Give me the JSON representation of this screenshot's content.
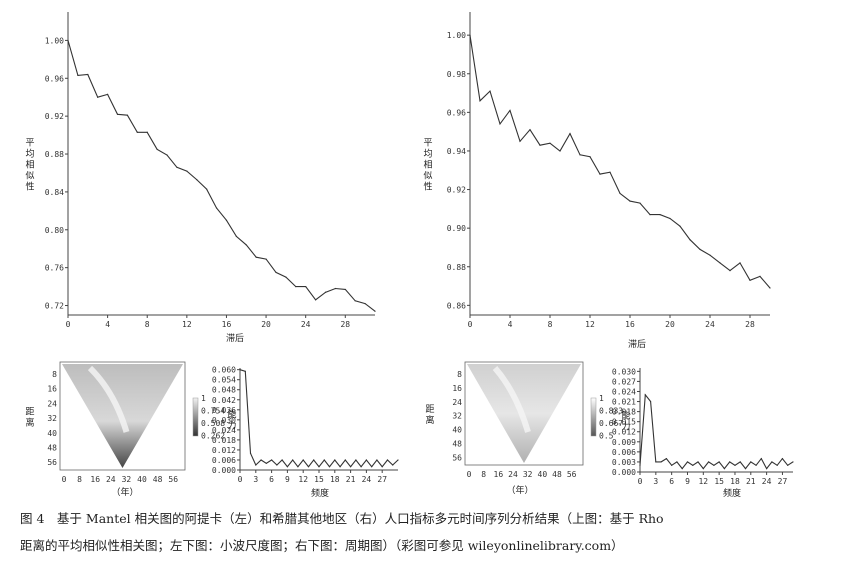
{
  "chart_data": [
    {
      "type": "line",
      "ylabel": "平均相似性",
      "xlabel": "滞后",
      "xticks": [
        0,
        4,
        8,
        12,
        16,
        20,
        24,
        28
      ],
      "yticks": [
        1.0,
        0.96,
        0.92,
        0.88,
        0.84,
        0.8,
        0.76,
        0.72
      ],
      "ytick_labels": [
        "1.00",
        "0.96",
        "0.92",
        "0.88",
        "0.84",
        "0.80",
        "0.76",
        "0.72"
      ],
      "xlim": [
        0,
        31
      ],
      "ylim": [
        0.71,
        1.03
      ],
      "x": [
        0,
        1,
        2,
        3,
        4,
        5,
        6,
        7,
        8,
        9,
        10,
        11,
        12,
        13,
        14,
        15,
        16,
        17,
        18,
        19,
        20,
        21,
        22,
        23,
        24,
        25,
        26,
        27,
        28,
        29,
        30,
        31
      ],
      "y": [
        1.0,
        0.963,
        0.964,
        0.94,
        0.943,
        0.922,
        0.921,
        0.903,
        0.903,
        0.885,
        0.879,
        0.866,
        0.862,
        0.853,
        0.843,
        0.823,
        0.81,
        0.793,
        0.784,
        0.771,
        0.769,
        0.755,
        0.75,
        0.74,
        0.74,
        0.726,
        0.734,
        0.738,
        0.737,
        0.725,
        0.722,
        0.714
      ]
    },
    {
      "type": "line",
      "ylabel": "平均相似性",
      "xlabel": "滞后",
      "xticks": [
        0,
        4,
        8,
        12,
        16,
        20,
        24,
        28
      ],
      "yticks": [
        1.0,
        0.98,
        0.96,
        0.94,
        0.92,
        0.9,
        0.88,
        0.86
      ],
      "ytick_labels": [
        "1.00",
        "0.98",
        "0.96",
        "0.94",
        "0.92",
        "0.90",
        "0.88",
        "0.86"
      ],
      "xlim": [
        0,
        30
      ],
      "ylim": [
        0.855,
        1.012
      ],
      "x": [
        0,
        1,
        2,
        3,
        4,
        5,
        6,
        7,
        8,
        9,
        10,
        11,
        12,
        13,
        14,
        15,
        16,
        17,
        18,
        19,
        20,
        21,
        22,
        23,
        24,
        25,
        26,
        27,
        28,
        29,
        30
      ],
      "y": [
        1.0,
        0.966,
        0.971,
        0.954,
        0.961,
        0.945,
        0.951,
        0.943,
        0.944,
        0.94,
        0.949,
        0.938,
        0.937,
        0.928,
        0.929,
        0.918,
        0.914,
        0.913,
        0.907,
        0.907,
        0.905,
        0.901,
        0.894,
        0.889,
        0.886,
        0.882,
        0.878,
        0.882,
        0.873,
        0.875,
        0.869
      ]
    },
    {
      "type": "heatmap",
      "ylabel": "距离",
      "xlabel": "（年）",
      "xticks": [
        0,
        8,
        16,
        24,
        32,
        40,
        48,
        56
      ],
      "yticks": [
        8,
        16,
        24,
        32,
        40,
        48,
        56
      ],
      "legend": [
        "1",
        "0.754",
        "0.508",
        "0.262"
      ]
    },
    {
      "type": "line",
      "ylabel": "能力",
      "xlabel": "频度",
      "xticks": [
        0,
        3,
        6,
        9,
        12,
        15,
        18,
        21,
        24,
        27
      ],
      "yticks": [
        0.0,
        0.006,
        0.012,
        0.018,
        0.024,
        0.03,
        0.036,
        0.042,
        0.048,
        0.054,
        0.06
      ],
      "ytick_labels": [
        "0.000",
        "0.006",
        "0.012",
        "0.018",
        "0.024",
        "0.030",
        "0.036",
        "0.042",
        "0.048",
        "0.054",
        "0.060"
      ],
      "xlim": [
        0,
        30
      ],
      "ylim": [
        0,
        0.061
      ],
      "x": [
        0,
        1,
        2,
        3,
        4,
        5,
        6,
        7,
        8,
        9,
        10,
        11,
        12,
        13,
        14,
        15,
        16,
        17,
        18,
        19,
        20,
        21,
        22,
        23,
        24,
        25,
        26,
        27,
        28,
        29,
        30
      ],
      "y": [
        0.06,
        0.059,
        0.01,
        0.003,
        0.006,
        0.004,
        0.006,
        0.003,
        0.006,
        0.002,
        0.006,
        0.002,
        0.006,
        0.002,
        0.006,
        0.002,
        0.006,
        0.002,
        0.006,
        0.002,
        0.006,
        0.002,
        0.006,
        0.002,
        0.006,
        0.002,
        0.006,
        0.002,
        0.006,
        0.003,
        0.006
      ]
    },
    {
      "type": "heatmap",
      "ylabel": "距离",
      "xlabel": "（年）",
      "xticks": [
        0,
        8,
        16,
        24,
        32,
        40,
        48,
        56
      ],
      "yticks": [
        8,
        16,
        24,
        32,
        40,
        48,
        56
      ],
      "legend": [
        "1",
        "0.833",
        "0.667",
        "0.5"
      ]
    },
    {
      "type": "line",
      "ylabel": "能力",
      "xlabel": "频度",
      "xticks": [
        0,
        3,
        6,
        9,
        12,
        15,
        18,
        21,
        24,
        27
      ],
      "yticks": [
        0.0,
        0.003,
        0.006,
        0.009,
        0.012,
        0.015,
        0.018,
        0.021,
        0.024,
        0.027,
        0.03
      ],
      "ytick_labels": [
        "0.000",
        "0.003",
        "0.006",
        "0.009",
        "0.012",
        "0.015",
        "0.018",
        "0.021",
        "0.024",
        "0.027",
        "0.030"
      ],
      "xlim": [
        0,
        29
      ],
      "ylim": [
        0,
        0.031
      ],
      "x": [
        0,
        1,
        2,
        3,
        4,
        5,
        6,
        7,
        8,
        9,
        10,
        11,
        12,
        13,
        14,
        15,
        16,
        17,
        18,
        19,
        20,
        21,
        22,
        23,
        24,
        25,
        26,
        27,
        28,
        29
      ],
      "y": [
        0.002,
        0.023,
        0.021,
        0.003,
        0.003,
        0.004,
        0.002,
        0.003,
        0.001,
        0.003,
        0.002,
        0.003,
        0.001,
        0.003,
        0.002,
        0.003,
        0.001,
        0.003,
        0.002,
        0.003,
        0.001,
        0.003,
        0.002,
        0.004,
        0.001,
        0.003,
        0.002,
        0.004,
        0.002,
        0.003
      ]
    }
  ],
  "caption": {
    "line1": "图 4　基于 Mantel 相关图的阿提卡（左）和希腊其他地区（右）人口指标多元时间序列分析结果（上图：基于 Rho",
    "line2": "距离的平均相似性相关图；左下图：小波尺度图；右下图：周期图）（彩图可参见 wileyonlinelibrary.com）"
  }
}
